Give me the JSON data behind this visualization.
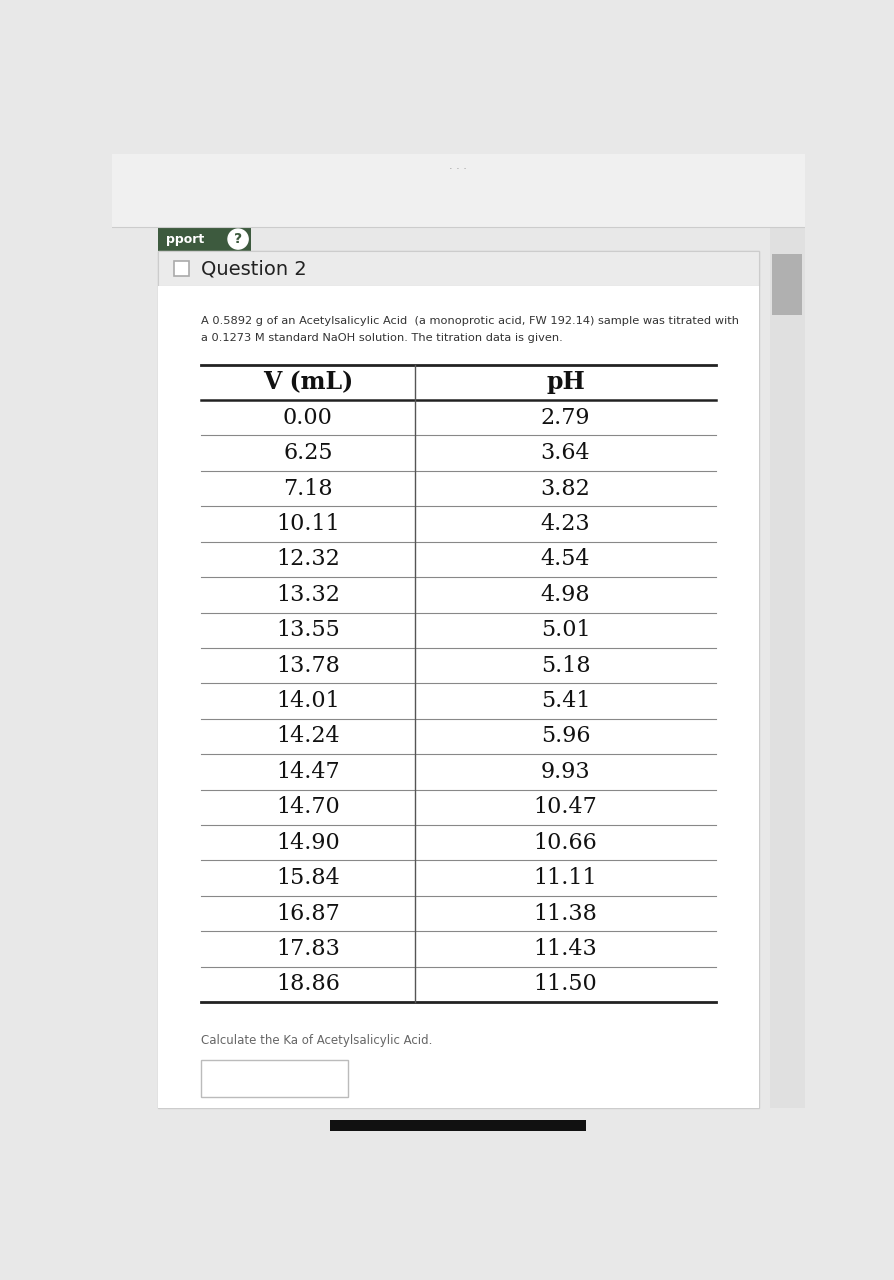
{
  "title": "Question 2",
  "description_line1": "A 0.5892 g of an Acetylsalicylic Acid  (a monoprotic acid, FW 192.14) sample was titrated with",
  "description_line2": "a 0.1273 M standard NaOH solution. The titration data is given.",
  "col1_header": "V (mL)",
  "col2_header": "pH",
  "volumes": [
    "0.00",
    "6.25",
    "7.18",
    "10.11",
    "12.32",
    "13.32",
    "13.55",
    "13.78",
    "14.01",
    "14.24",
    "14.47",
    "14.70",
    "14.90",
    "15.84",
    "16.87",
    "17.83",
    "18.86"
  ],
  "ph_values": [
    "2.79",
    "3.64",
    "3.82",
    "4.23",
    "4.54",
    "4.98",
    "5.01",
    "5.18",
    "5.41",
    "5.96",
    "9.93",
    "10.47",
    "10.66",
    "11.11",
    "11.38",
    "11.43",
    "11.50"
  ],
  "question_text": "Calculate the Ka of Acetylsalicylic Acid.",
  "bg_color": "#e8e8e8",
  "panel_bg": "#ffffff",
  "question_header_bg": "#ebebeb",
  "pport_text": "pport",
  "pport_bg": "#3d5a3e",
  "top_bg": "#f5f5f5"
}
